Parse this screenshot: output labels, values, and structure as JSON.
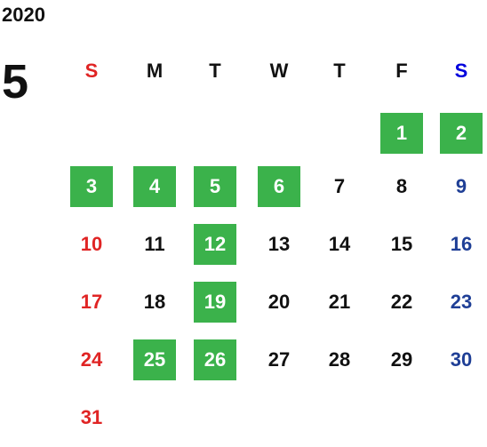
{
  "calendar": {
    "year": "2020",
    "month": "5",
    "weekdays": [
      "S",
      "M",
      "T",
      "W",
      "T",
      "F",
      "S"
    ],
    "weeks": [
      [
        null,
        null,
        null,
        null,
        null,
        {
          "day": 1,
          "highlight": true
        },
        {
          "day": 2,
          "highlight": true
        }
      ],
      [
        {
          "day": 3,
          "highlight": true
        },
        {
          "day": 4,
          "highlight": true
        },
        {
          "day": 5,
          "highlight": true
        },
        {
          "day": 6,
          "highlight": true
        },
        {
          "day": 7,
          "highlight": false
        },
        {
          "day": 8,
          "highlight": false
        },
        {
          "day": 9,
          "highlight": false
        }
      ],
      [
        {
          "day": 10,
          "highlight": false
        },
        {
          "day": 11,
          "highlight": false
        },
        {
          "day": 12,
          "highlight": true
        },
        {
          "day": 13,
          "highlight": false
        },
        {
          "day": 14,
          "highlight": false
        },
        {
          "day": 15,
          "highlight": false
        },
        {
          "day": 16,
          "highlight": false
        }
      ],
      [
        {
          "day": 17,
          "highlight": false
        },
        {
          "day": 18,
          "highlight": false
        },
        {
          "day": 19,
          "highlight": true
        },
        {
          "day": 20,
          "highlight": false
        },
        {
          "day": 21,
          "highlight": false
        },
        {
          "day": 22,
          "highlight": false
        },
        {
          "day": 23,
          "highlight": false
        }
      ],
      [
        {
          "day": 24,
          "highlight": false
        },
        {
          "day": 25,
          "highlight": true
        },
        {
          "day": 26,
          "highlight": true
        },
        {
          "day": 27,
          "highlight": false
        },
        {
          "day": 28,
          "highlight": false
        },
        {
          "day": 29,
          "highlight": false
        },
        {
          "day": 30,
          "highlight": false
        }
      ],
      [
        {
          "day": 31,
          "highlight": false
        }
      ]
    ]
  }
}
